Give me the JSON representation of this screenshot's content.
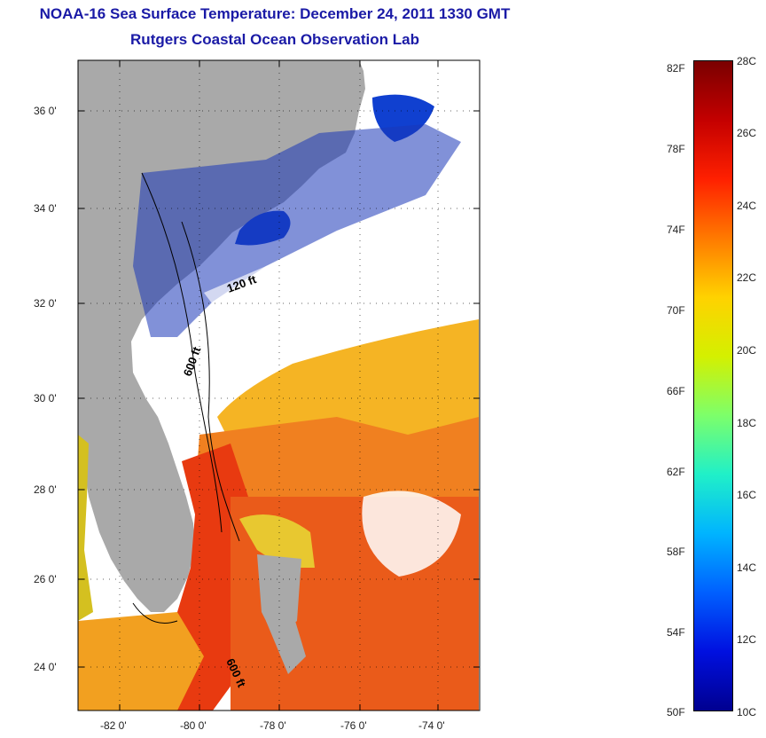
{
  "title_line1": "NOAA-16 Sea Surface Temperature:  December 24, 2011 1330 GMT",
  "title_line2": "Rutgers Coastal Ocean Observation Lab",
  "lat_ticks": [
    "36 0'",
    "34 0'",
    "32 0'",
    "30 0'",
    "28 0'",
    "26 0'",
    "24 0'"
  ],
  "lon_ticks": [
    "-82 0'",
    "-80 0'",
    "-78 0'",
    "-76 0'",
    "-74 0'"
  ],
  "contour_labels": [
    "120 ft",
    "600 ft",
    "600 ft"
  ],
  "colorbar": {
    "fahrenheit": [
      "82F",
      "78F",
      "74F",
      "70F",
      "66F",
      "62F",
      "58F",
      "54F",
      "50F"
    ],
    "celsius": [
      "28C",
      "26C",
      "24C",
      "22C",
      "20C",
      "18C",
      "16C",
      "14C",
      "12C",
      "10C"
    ],
    "colors": [
      "#7a0000",
      "#c40000",
      "#ff2000",
      "#ff7a00",
      "#ffd200",
      "#d4f000",
      "#7dff6a",
      "#20f0c8",
      "#00b4ff",
      "#0060ff",
      "#0010e0",
      "#000090"
    ]
  },
  "colors": {
    "land": "#a9a9a9",
    "title": "#1a1aa6",
    "warm_water": "#f03010",
    "mid_water": "#f07820",
    "cool_water": "#f5c020",
    "cold_water": "#1030c0",
    "cloud": "#ffffff"
  }
}
